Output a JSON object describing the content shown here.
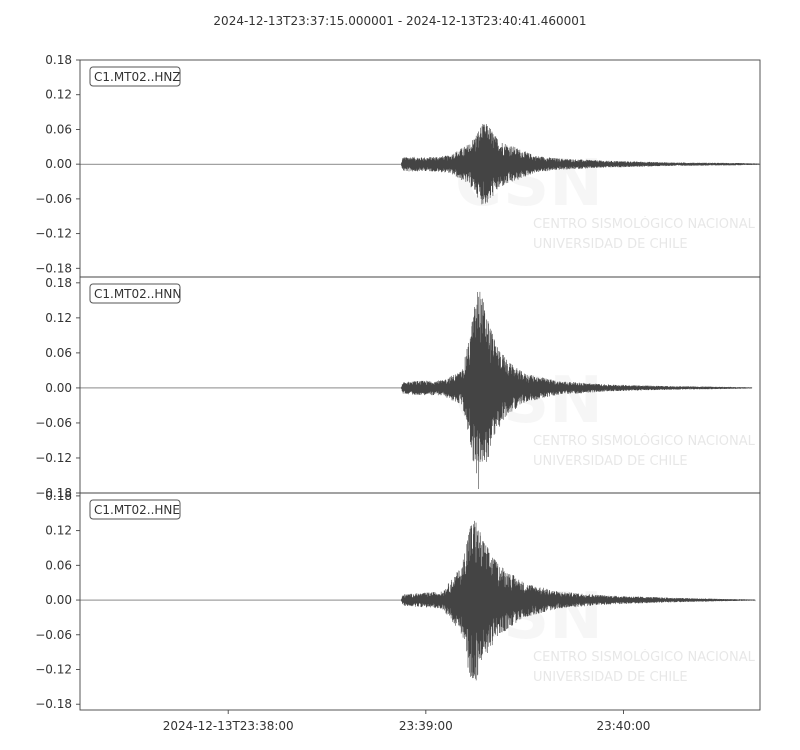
{
  "chart_data": {
    "type": "line",
    "title": "2024-12-13T23:37:15.000001  -  2024-12-13T23:40:41.460001",
    "line_color": "#444444",
    "x_range_seconds_after_start": [
      0,
      206.46
    ],
    "x_ticks": [
      {
        "label": "2024-12-13T23:38:00",
        "seconds": 45
      },
      {
        "label": "23:39:00",
        "seconds": 105
      },
      {
        "label": "23:40:00",
        "seconds": 165
      }
    ],
    "watermark": {
      "logo_text": "CSN",
      "line1": "CENTRO SISMOLÓGICO NACIONAL",
      "line2": "UNIVERSIDAD DE CHILE"
    },
    "panels": [
      {
        "name": "C1.MT02..HNZ",
        "ylim": [
          -0.195,
          0.18
        ],
        "yticks": [
          {
            "label": "0.18",
            "value": 0.18
          },
          {
            "label": "0.12",
            "value": 0.12
          },
          {
            "label": "0.06",
            "value": 0.06
          },
          {
            "label": "0.00",
            "value": 0.0
          },
          {
            "label": "−0.06",
            "value": -0.06
          },
          {
            "label": "−0.12",
            "value": -0.12
          },
          {
            "label": "−0.18",
            "value": -0.18
          }
        ],
        "envelope": [
          [
            0,
            0.0002
          ],
          [
            97.5,
            0.0002
          ],
          [
            98,
            0.012
          ],
          [
            100,
            0.013
          ],
          [
            105,
            0.012
          ],
          [
            112,
            0.015
          ],
          [
            118,
            0.035
          ],
          [
            120,
            0.05
          ],
          [
            122,
            0.07
          ],
          [
            124,
            0.07
          ],
          [
            126,
            0.05
          ],
          [
            128,
            0.04
          ],
          [
            132,
            0.03
          ],
          [
            138,
            0.015
          ],
          [
            145,
            0.01
          ],
          [
            160,
            0.006
          ],
          [
            180,
            0.003
          ],
          [
            200,
            0.002
          ],
          [
            206.46,
            0.001
          ]
        ]
      },
      {
        "name": "C1.MT02..HNN",
        "ylim": [
          -0.18,
          0.19
        ],
        "yticks": [
          {
            "label": "0.18",
            "value": 0.18
          },
          {
            "label": "0.12",
            "value": 0.12
          },
          {
            "label": "0.06",
            "value": 0.06
          },
          {
            "label": "0.00",
            "value": 0.0
          },
          {
            "label": "−0.06",
            "value": -0.06
          },
          {
            "label": "−0.12",
            "value": -0.12
          },
          {
            "label": "−0.18",
            "value": -0.18
          }
        ],
        "envelope": [
          [
            0,
            0.0002
          ],
          [
            97.5,
            0.0002
          ],
          [
            98,
            0.01
          ],
          [
            102,
            0.012
          ],
          [
            110,
            0.013
          ],
          [
            116,
            0.03
          ],
          [
            118,
            0.08
          ],
          [
            120,
            0.15
          ],
          [
            121,
            0.18
          ],
          [
            123,
            0.14
          ],
          [
            126,
            0.08
          ],
          [
            130,
            0.045
          ],
          [
            135,
            0.025
          ],
          [
            145,
            0.012
          ],
          [
            160,
            0.006
          ],
          [
            180,
            0.003
          ],
          [
            195,
            0.002
          ],
          [
            204,
            0.001
          ]
        ]
      },
      {
        "name": "C1.MT02..HNE",
        "ylim": [
          -0.19,
          0.185
        ],
        "yticks": [
          {
            "label": "0.18",
            "value": 0.18
          },
          {
            "label": "0.12",
            "value": 0.12
          },
          {
            "label": "0.06",
            "value": 0.06
          },
          {
            "label": "0.00",
            "value": 0.0
          },
          {
            "label": "−0.06",
            "value": -0.06
          },
          {
            "label": "−0.12",
            "value": -0.12
          },
          {
            "label": "−0.18",
            "value": -0.18
          }
        ],
        "envelope": [
          [
            0,
            0.0002
          ],
          [
            97.5,
            0.0002
          ],
          [
            98,
            0.01
          ],
          [
            103,
            0.012
          ],
          [
            110,
            0.015
          ],
          [
            116,
            0.06
          ],
          [
            118,
            0.13
          ],
          [
            120,
            0.145
          ],
          [
            122,
            0.11
          ],
          [
            126,
            0.07
          ],
          [
            130,
            0.05
          ],
          [
            135,
            0.03
          ],
          [
            145,
            0.015
          ],
          [
            160,
            0.008
          ],
          [
            180,
            0.004
          ],
          [
            195,
            0.002
          ],
          [
            205,
            0.001
          ]
        ]
      }
    ]
  }
}
